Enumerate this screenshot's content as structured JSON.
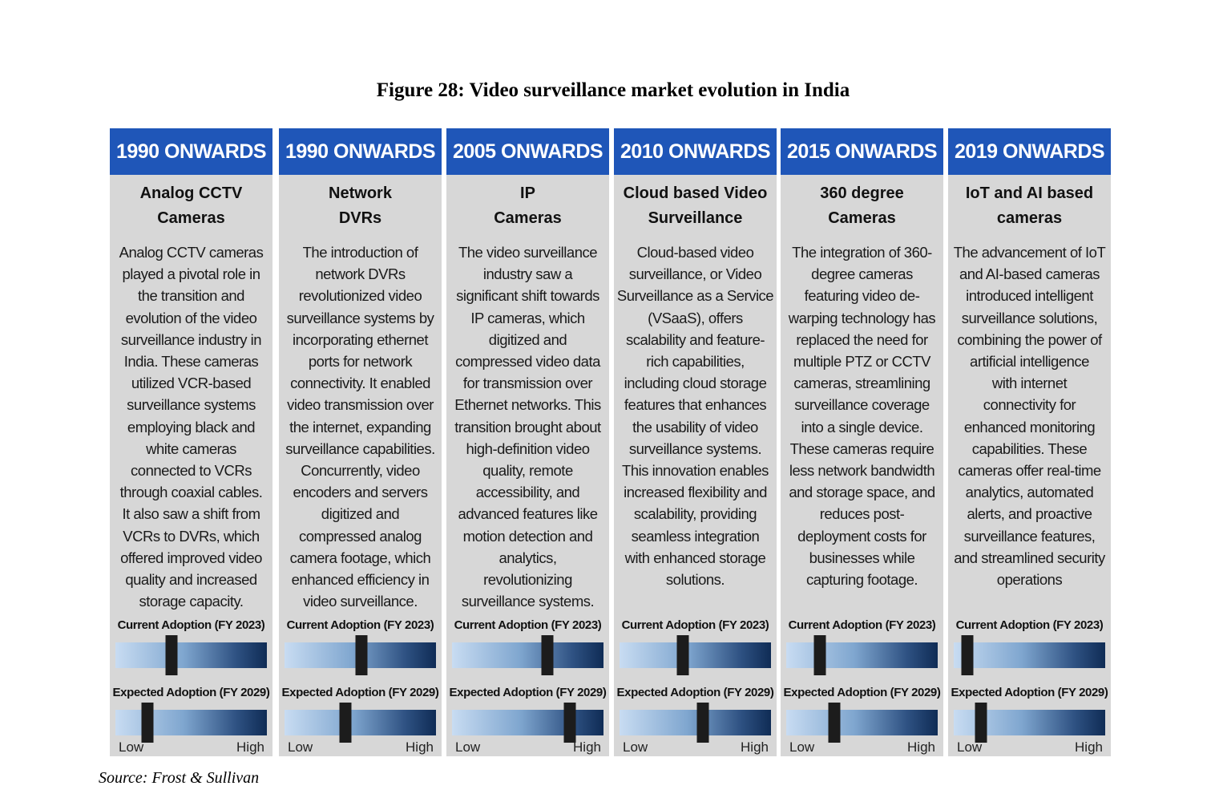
{
  "figure_title": "Figure 28: Video surveillance market evolution in India",
  "source": "Source: Frost & Sullivan",
  "labels": {
    "current": "Current Adoption (FY 2023)",
    "expected": "Expected Adoption (FY 2029)",
    "low": "Low",
    "high": "High"
  },
  "columns": [
    {
      "period": "1990 ONWARDS",
      "title_lines": [
        "Analog CCTV",
        "Cameras"
      ],
      "desc_lines": [
        "Analog CCTV cameras",
        "played a pivotal role in",
        "the transition and",
        "evolution of the video",
        "surveillance industry in",
        "India. These cameras",
        "utilized VCR-based",
        "surveillance systems",
        "employing black and",
        "white cameras",
        "connected to VCRs",
        "through coaxial cables.",
        "It also  saw a shift from",
        "VCRs to DVRs, which",
        "offered  improved video",
        "quality and increased",
        "storage capacity."
      ],
      "current_adoption": 0.37,
      "expected_adoption": 0.21
    },
    {
      "period": "1990 ONWARDS",
      "title_lines": [
        "Network",
        "DVRs"
      ],
      "desc_lines": [
        "The introduction of",
        "network DVRs",
        "revolutionized video",
        "surveillance systems by",
        "incorporating ethernet",
        "ports for network",
        "connectivity. It enabled",
        "video transmission over",
        "the internet, expanding",
        "surveillance capabilities.",
        "Concurrently, video",
        "encoders and servers",
        "digitized and",
        "compressed analog",
        "camera footage, which",
        "enhanced efficiency in",
        "video surveillance."
      ],
      "current_adoption": 0.51,
      "expected_adoption": 0.4
    },
    {
      "period": "2005 ONWARDS",
      "title_lines": [
        "IP",
        "Cameras"
      ],
      "desc_lines": [
        "The video surveillance",
        "industry saw a",
        "significant shift towards",
        "IP cameras, which",
        "digitized and",
        "compressed video data",
        "for transmission over",
        "Ethernet networks. This",
        "transition brought about",
        "high-definition video",
        "quality, remote",
        "accessibility, and",
        "advanced features like",
        "motion detection and",
        "analytics,",
        "revolutionizing",
        "surveillance systems."
      ],
      "current_adoption": 0.63,
      "expected_adoption": 0.78
    },
    {
      "period": "2010 ONWARDS",
      "title_lines": [
        "Cloud based Video",
        "Surveillance"
      ],
      "desc_lines": [
        "Cloud-based video",
        "surveillance, or Video",
        "Surveillance as a Service",
        "(VSaaS), offers",
        "scalability and feature-",
        "rich capabilities,",
        "including cloud storage",
        "features that enhances",
        "the usability of video",
        "surveillance systems.",
        "This innovation enables",
        "increased flexibility and",
        "scalability, providing",
        "seamless integration",
        "with enhanced storage",
        "solutions."
      ],
      "current_adoption": 0.42,
      "expected_adoption": 0.55
    },
    {
      "period": "2015 ONWARDS",
      "title_lines": [
        "360 degree",
        "Cameras"
      ],
      "desc_lines": [
        "The integration of 360-",
        "degree cameras",
        "featuring video de-",
        "warping technology has",
        "replaced the need for",
        "multiple PTZ or CCTV",
        "cameras, streamlining",
        "surveillance coverage",
        "into a single device.",
        "These cameras require",
        "less network bandwidth",
        "and storage space,  and",
        "reduces post-",
        "deployment costs for",
        "businesses while",
        "capturing footage."
      ],
      "current_adoption": 0.22,
      "expected_adoption": 0.32
    },
    {
      "period": "2019 ONWARDS",
      "title_lines": [
        "IoT and AI based",
        "cameras"
      ],
      "desc_lines": [
        "The advancement of IoT",
        "and AI-based cameras",
        "introduced intelligent",
        "surveillance solutions,",
        "combining the power of",
        "artificial intelligence",
        "with internet",
        "connectivity for",
        "enhanced monitoring",
        "capabilities. These",
        "cameras offer real-time",
        "analytics, automated",
        "alerts, and proactive",
        "surveillance features,",
        "and streamlined security",
        "operations"
      ],
      "current_adoption": 0.09,
      "expected_adoption": 0.18
    }
  ]
}
